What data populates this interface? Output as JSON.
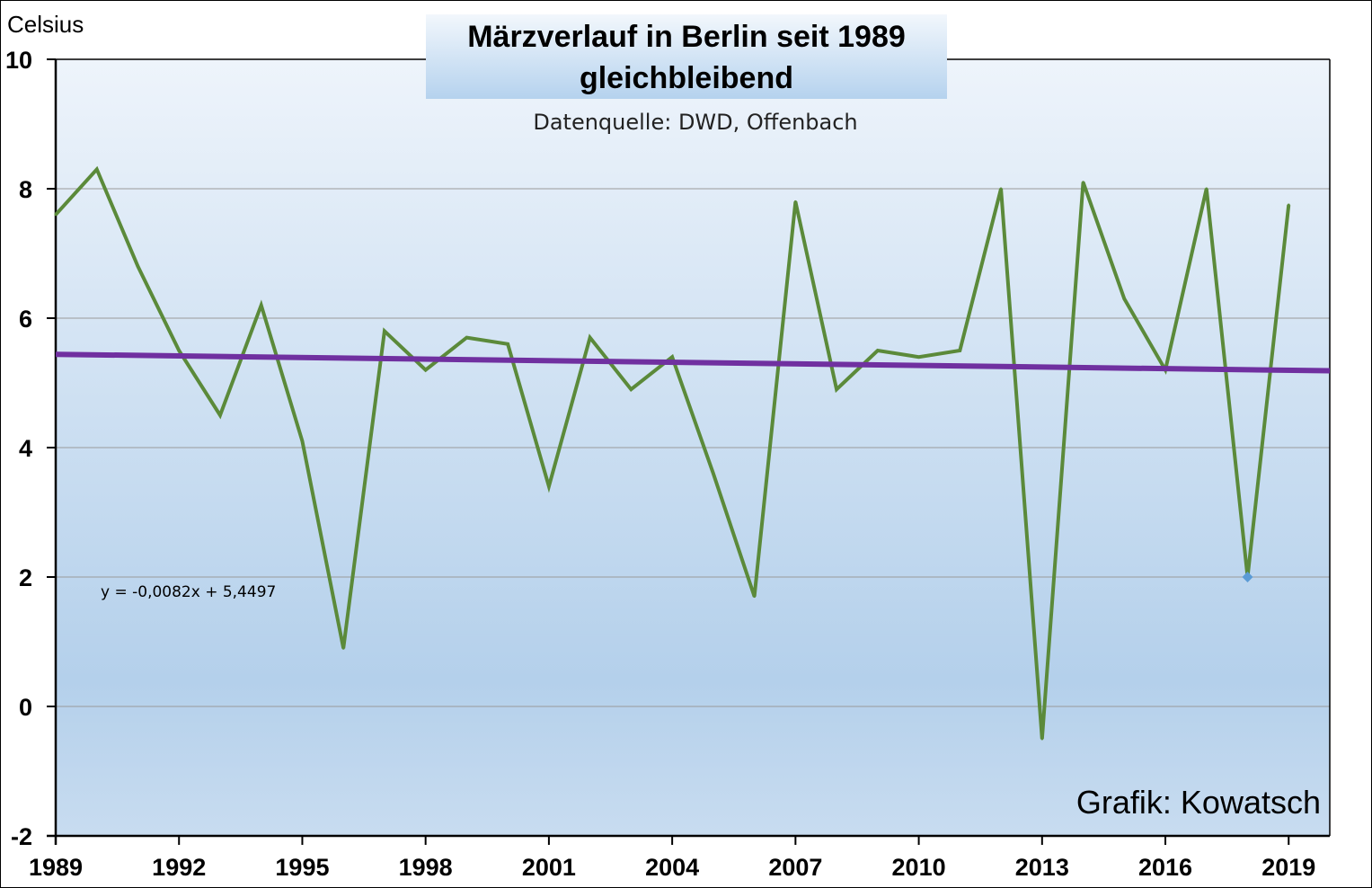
{
  "chart_data": {
    "type": "line",
    "title_line1": "Märzverlauf in Berlin seit 1989",
    "title_line2": "gleichbleibend",
    "subtitle": "Datenquelle: DWD, Offenbach",
    "ylabel": "Celsius",
    "credit": "Grafik: Kowatsch",
    "trendline_equation": "y = -0,0082x + 5,4497",
    "ylim": [
      -2,
      10
    ],
    "xlim": [
      1989,
      2020
    ],
    "yticks": [
      -2,
      0,
      2,
      4,
      6,
      8,
      10
    ],
    "xticks": [
      1989,
      1992,
      1995,
      1998,
      2001,
      2004,
      2007,
      2010,
      2013,
      2016,
      2019
    ],
    "grid": true,
    "series": [
      {
        "x": [
          1989,
          1990,
          1991,
          1992,
          1993,
          1994,
          1995,
          1996,
          1997,
          1998,
          1999,
          2000,
          2001,
          2002,
          2003,
          2004,
          2005,
          2006,
          2007,
          2008,
          2009,
          2010,
          2011,
          2012,
          2013,
          2014,
          2015,
          2016,
          2017,
          2018,
          2019
        ],
        "y": [
          7.6,
          8.3,
          6.8,
          5.5,
          4.5,
          6.2,
          4.1,
          0.9,
          5.8,
          5.2,
          5.7,
          5.6,
          3.4,
          5.7,
          4.9,
          5.4,
          3.6,
          1.7,
          7.8,
          4.9,
          5.5,
          5.4,
          5.5,
          8.0,
          -0.5,
          8.1,
          6.3,
          5.2,
          8.0,
          2.0,
          7.75
        ],
        "color": "#5b8a3a"
      }
    ],
    "trendline": {
      "slope": -0.0082,
      "intercept": 5.4497,
      "color": "#7030a0"
    },
    "highlight_point": {
      "x": 2018,
      "y": 2.0,
      "color": "#5b9bd5"
    },
    "colors": {
      "plot_bg_top": "#eef4fb",
      "plot_bg_mid": "#b4d0eb",
      "plot_bg_bottom": "#c8dcf0",
      "title_box_top": "#f2f7fc",
      "title_box_bottom": "#b5d2ee"
    }
  }
}
